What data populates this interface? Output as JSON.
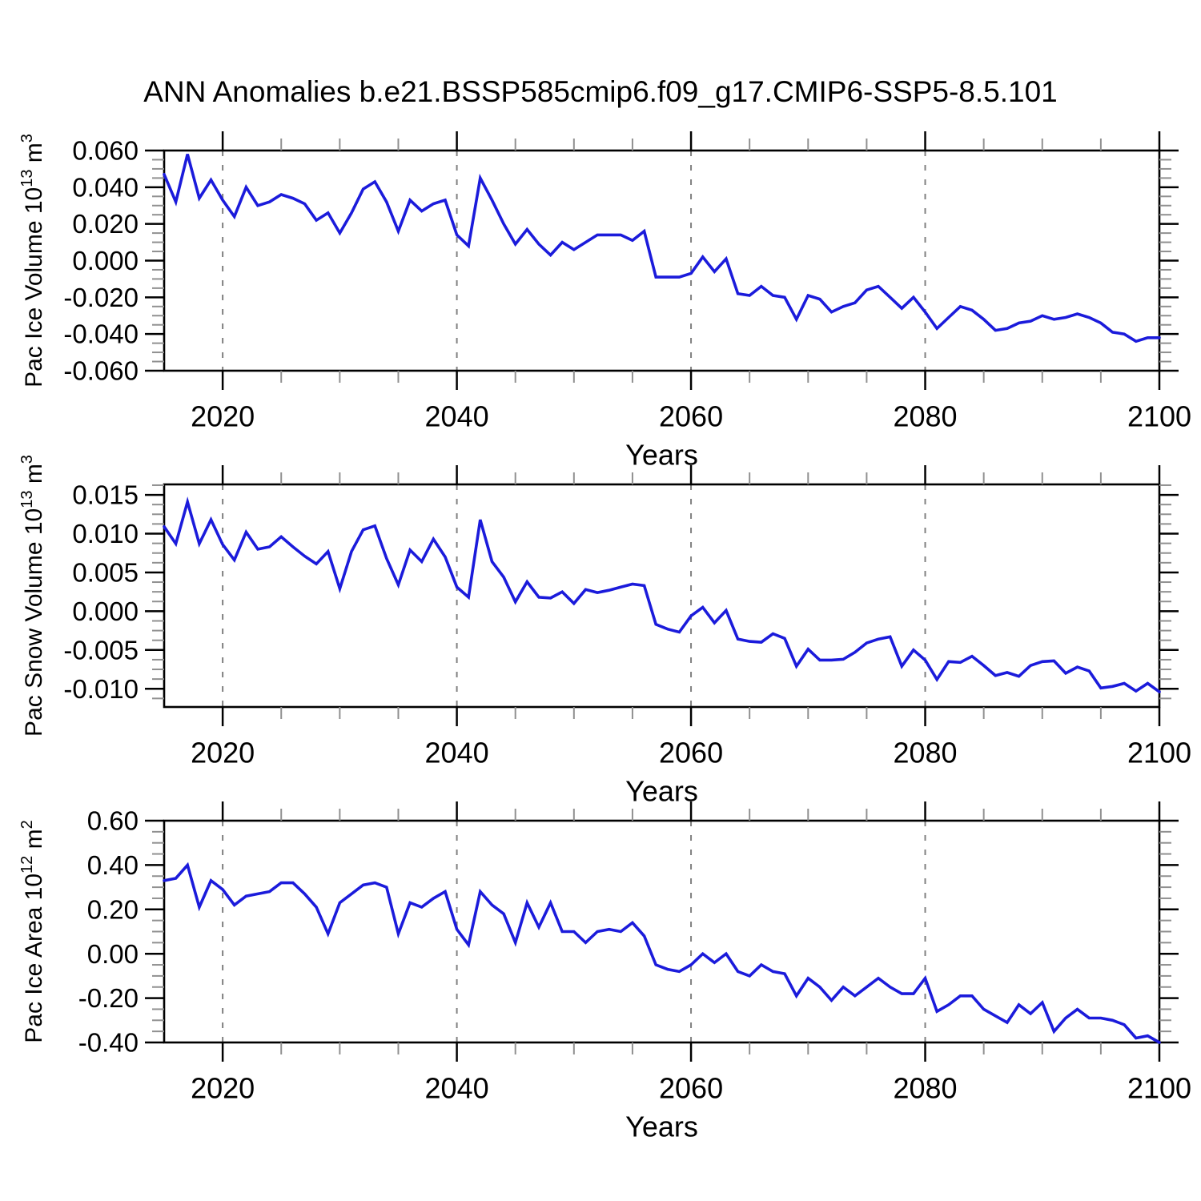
{
  "title": "ANN Anomalies b.e21.BSSP585cmip6.f09_g17.CMIP6-SSP5-8.5.101",
  "colors": {
    "line": "#1B1BDB",
    "axis": "#000000",
    "major_tick": "#000000",
    "minor_tick": "#909090",
    "gridline": "#808080",
    "text": "#000000",
    "background": "#FFFFFF"
  },
  "x_axis": {
    "label": "Years",
    "start": 2015,
    "end": 2100,
    "major_tick_years": [
      2020,
      2040,
      2060,
      2080,
      2100
    ],
    "major_tick_labels": [
      "2020",
      "2040",
      "2060",
      "2080",
      "2100"
    ],
    "minor_tick_step_years": 5,
    "gridline_years": [
      2020,
      2040,
      2060,
      2080,
      2100
    ],
    "gridline_style": "dashed"
  },
  "chart_data": [
    {
      "type": "line",
      "name": "pac-ice-volume",
      "ylabel_text": "Pac Ice Volume 10^13 m^3",
      "ylabel_segments": [
        [
          "text",
          "Pac Ice Volume 10"
        ],
        [
          "sup",
          "13"
        ],
        [
          "text",
          " m"
        ],
        [
          "sup",
          "3"
        ]
      ],
      "ylim": [
        -0.06,
        0.06
      ],
      "ytick_values": [
        0.06,
        0.04,
        0.02,
        0.0,
        -0.02,
        -0.04,
        -0.06
      ],
      "ytick_labels": [
        "0.060",
        "0.040",
        "0.020",
        "0.000",
        "-0.020",
        "-0.040",
        "-0.060"
      ],
      "yminor_step": 0.005,
      "x_start": 2015,
      "x_step": 1,
      "values": [
        0.047,
        0.032,
        0.058,
        0.034,
        0.044,
        0.033,
        0.024,
        0.04,
        0.03,
        0.032,
        0.036,
        0.034,
        0.031,
        0.022,
        0.026,
        0.015,
        0.026,
        0.039,
        0.043,
        0.032,
        0.016,
        0.033,
        0.027,
        0.031,
        0.033,
        0.014,
        0.008,
        0.045,
        0.033,
        0.02,
        0.009,
        0.017,
        0.009,
        0.003,
        0.01,
        0.006,
        0.01,
        0.014,
        0.014,
        0.014,
        0.011,
        0.016,
        -0.009,
        -0.009,
        -0.009,
        -0.007,
        0.002,
        -0.006,
        0.001,
        -0.018,
        -0.019,
        -0.014,
        -0.019,
        -0.02,
        -0.032,
        -0.019,
        -0.021,
        -0.028,
        -0.025,
        -0.023,
        -0.016,
        -0.014,
        -0.02,
        -0.026,
        -0.02,
        -0.028,
        -0.037,
        -0.031,
        -0.025,
        -0.027,
        -0.032,
        -0.038,
        -0.037,
        -0.034,
        -0.033,
        -0.03,
        -0.032,
        -0.031,
        -0.029,
        -0.031,
        -0.034,
        -0.039,
        -0.04,
        -0.044,
        -0.042,
        -0.042
      ]
    },
    {
      "type": "line",
      "name": "pac-snow-volume",
      "ylabel_text": "Pac Snow Volume 10^13 m^3",
      "ylabel_segments": [
        [
          "text",
          "Pac Snow Volume 10"
        ],
        [
          "sup",
          "13"
        ],
        [
          "text",
          " m"
        ],
        [
          "sup",
          "3"
        ]
      ],
      "ylim": [
        -0.01235,
        0.01635
      ],
      "ytick_values": [
        0.015,
        0.01,
        0.005,
        0.0,
        -0.005,
        -0.01
      ],
      "ytick_labels": [
        "0.015",
        "0.010",
        "0.005",
        "0.000",
        "-0.005",
        "-0.010"
      ],
      "yminor_step": 0.00125,
      "x_start": 2015,
      "x_step": 1,
      "values": [
        0.0109,
        0.0087,
        0.0141,
        0.0087,
        0.0118,
        0.0086,
        0.0066,
        0.0102,
        0.008,
        0.0083,
        0.0096,
        0.0083,
        0.0071,
        0.0061,
        0.0077,
        0.0029,
        0.0077,
        0.0105,
        0.011,
        0.0068,
        0.0034,
        0.0079,
        0.0064,
        0.0093,
        0.007,
        0.0031,
        0.0018,
        0.0118,
        0.0064,
        0.0044,
        0.0012,
        0.0038,
        0.0018,
        0.0017,
        0.0025,
        0.001,
        0.0028,
        0.0024,
        0.0027,
        0.0031,
        0.0035,
        0.0033,
        -0.0017,
        -0.0023,
        -0.0027,
        -0.0006,
        0.0005,
        -0.0015,
        0.0001,
        -0.0036,
        -0.0039,
        -0.004,
        -0.0029,
        -0.0035,
        -0.0071,
        -0.0049,
        -0.0063,
        -0.0063,
        -0.0062,
        -0.0053,
        -0.0041,
        -0.0036,
        -0.0033,
        -0.0071,
        -0.005,
        -0.0063,
        -0.0088,
        -0.0065,
        -0.0066,
        -0.0058,
        -0.007,
        -0.0083,
        -0.0079,
        -0.0084,
        -0.007,
        -0.0065,
        -0.0064,
        -0.008,
        -0.0072,
        -0.0077,
        -0.0099,
        -0.0097,
        -0.0093,
        -0.0103,
        -0.0093,
        -0.0104
      ]
    },
    {
      "type": "line",
      "name": "pac-ice-area",
      "ylabel_text": "Pac Ice Area 10^12 m^2",
      "ylabel_segments": [
        [
          "text",
          "Pac Ice Area 10"
        ],
        [
          "sup",
          "12"
        ],
        [
          "text",
          " m"
        ],
        [
          "sup",
          "2"
        ]
      ],
      "ylim": [
        -0.4,
        0.6
      ],
      "ytick_values": [
        0.6,
        0.4,
        0.2,
        0.0,
        -0.2,
        -0.4
      ],
      "ytick_labels": [
        "0.60",
        "0.40",
        "0.20",
        "0.00",
        "-0.20",
        "-0.40"
      ],
      "yminor_step": 0.05,
      "x_start": 2015,
      "x_step": 1,
      "values": [
        0.33,
        0.34,
        0.4,
        0.21,
        0.33,
        0.29,
        0.22,
        0.26,
        0.27,
        0.28,
        0.32,
        0.32,
        0.27,
        0.21,
        0.09,
        0.23,
        0.27,
        0.31,
        0.32,
        0.3,
        0.09,
        0.23,
        0.21,
        0.25,
        0.28,
        0.11,
        0.04,
        0.28,
        0.22,
        0.18,
        0.05,
        0.23,
        0.12,
        0.23,
        0.1,
        0.1,
        0.05,
        0.1,
        0.11,
        0.1,
        0.14,
        0.08,
        -0.05,
        -0.07,
        -0.08,
        -0.05,
        0.0,
        -0.04,
        0.0,
        -0.08,
        -0.1,
        -0.05,
        -0.08,
        -0.09,
        -0.19,
        -0.11,
        -0.15,
        -0.21,
        -0.15,
        -0.19,
        -0.15,
        -0.11,
        -0.15,
        -0.18,
        -0.18,
        -0.11,
        -0.26,
        -0.23,
        -0.19,
        -0.19,
        -0.25,
        -0.28,
        -0.31,
        -0.23,
        -0.27,
        -0.22,
        -0.35,
        -0.29,
        -0.25,
        -0.29,
        -0.29,
        -0.3,
        -0.32,
        -0.38,
        -0.37,
        -0.4
      ]
    }
  ]
}
